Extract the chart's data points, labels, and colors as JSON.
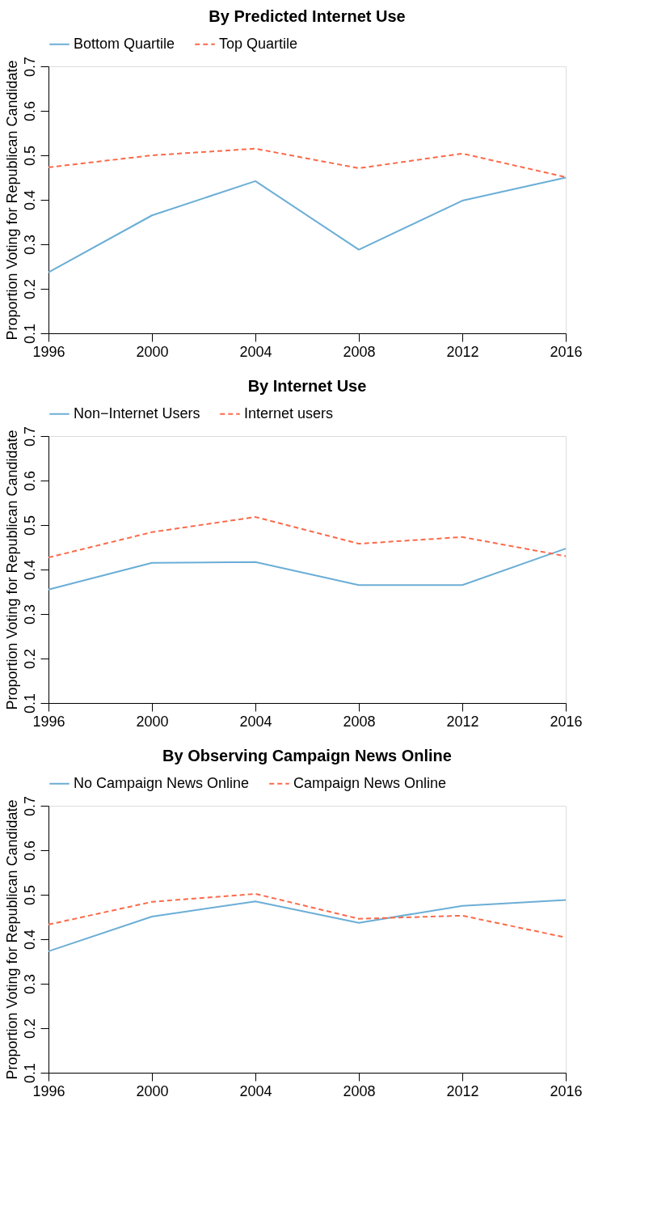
{
  "chart_data": [
    {
      "type": "line",
      "title": "By Predicted Internet Use",
      "ylabel": "Proportion Voting for Republican Candidate",
      "x": [
        1996,
        2000,
        2004,
        2008,
        2012,
        2016
      ],
      "xlim": [
        1996,
        2016
      ],
      "xticks": [
        1996,
        2000,
        2004,
        2008,
        2012,
        2016
      ],
      "ylim": [
        0.1,
        0.7
      ],
      "yticks": [
        0.1,
        0.2,
        0.3,
        0.4,
        0.5,
        0.6,
        0.7
      ],
      "grid": false,
      "legend": "top",
      "marker": "none",
      "series": [
        {
          "name": "Bottom Quartile",
          "color": "#6baed6",
          "line_style": "solid",
          "values": [
            0.237,
            0.365,
            0.442,
            0.288,
            0.398,
            0.45
          ]
        },
        {
          "name": "Top Quartile",
          "color": "#fb6a4a",
          "line_style": "dashed",
          "values": [
            0.473,
            0.5,
            0.515,
            0.471,
            0.504,
            0.451
          ]
        }
      ]
    },
    {
      "type": "line",
      "title": "By Internet Use",
      "ylabel": "Proportion Voting for Republican Candidate",
      "x": [
        1996,
        2000,
        2004,
        2008,
        2012,
        2016
      ],
      "xlim": [
        1996,
        2016
      ],
      "xticks": [
        1996,
        2000,
        2004,
        2008,
        2012,
        2016
      ],
      "ylim": [
        0.1,
        0.7
      ],
      "yticks": [
        0.1,
        0.2,
        0.3,
        0.4,
        0.5,
        0.6,
        0.7
      ],
      "grid": false,
      "legend": "top",
      "marker": "none",
      "series": [
        {
          "name": "Non−Internet Users",
          "color": "#6baed6",
          "line_style": "solid",
          "values": [
            0.355,
            0.415,
            0.417,
            0.365,
            0.365,
            0.447
          ]
        },
        {
          "name": "Internet users",
          "color": "#fb6a4a",
          "line_style": "dashed",
          "values": [
            0.427,
            0.484,
            0.518,
            0.458,
            0.473,
            0.43
          ]
        }
      ]
    },
    {
      "type": "line",
      "title": "By Observing Campaign News Online",
      "ylabel": "Proportion Voting for Republican Candidate",
      "x": [
        1996,
        2000,
        2004,
        2008,
        2012,
        2016
      ],
      "xlim": [
        1996,
        2016
      ],
      "xticks": [
        1996,
        2000,
        2004,
        2008,
        2012,
        2016
      ],
      "ylim": [
        0.1,
        0.7
      ],
      "yticks": [
        0.1,
        0.2,
        0.3,
        0.4,
        0.5,
        0.6,
        0.7
      ],
      "grid": false,
      "legend": "top",
      "marker": "none",
      "series": [
        {
          "name": "No Campaign News Online",
          "color": "#6baed6",
          "line_style": "solid",
          "values": [
            0.373,
            0.451,
            0.485,
            0.437,
            0.475,
            0.488
          ]
        },
        {
          "name": "Campaign News Online",
          "color": "#fb6a4a",
          "line_style": "dashed",
          "values": [
            0.433,
            0.484,
            0.502,
            0.446,
            0.453,
            0.404
          ]
        }
      ]
    }
  ]
}
